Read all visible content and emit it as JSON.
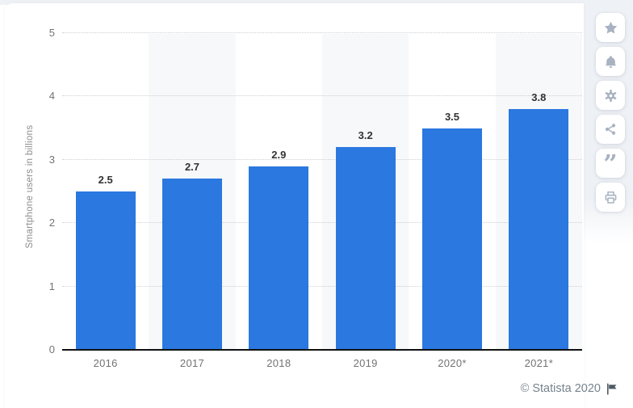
{
  "chart_data": {
    "type": "bar",
    "categories": [
      "2016",
      "2017",
      "2018",
      "2019",
      "2020*",
      "2021*"
    ],
    "values": [
      2.5,
      2.7,
      2.9,
      3.2,
      3.5,
      3.8
    ],
    "value_labels": [
      "2.5",
      "2.7",
      "2.9",
      "3.2",
      "3.5",
      "3.8"
    ],
    "ylabel": "Smartphone users in billions",
    "ylim": [
      0,
      5
    ],
    "yticks": [
      0,
      1,
      2,
      3,
      4,
      5
    ],
    "grid": "horizontal-dotted",
    "legend": "none",
    "alternating_bands": true
  },
  "sidebar": {
    "buttons": [
      {
        "name": "favorite",
        "icon": "star-icon"
      },
      {
        "name": "notifications",
        "icon": "bell-icon"
      },
      {
        "name": "settings",
        "icon": "gear-icon"
      },
      {
        "name": "share",
        "icon": "share-icon"
      },
      {
        "name": "cite",
        "icon": "quote-icon",
        "glyph": "”"
      },
      {
        "name": "print",
        "icon": "print-icon"
      }
    ]
  },
  "footer": {
    "copyright": "© Statista 2020",
    "flag": "flag-icon"
  },
  "colors": {
    "bar": "#2a78e0",
    "band": "#f7f8f9",
    "grid": "#cfcfcf",
    "axis": "#111111",
    "tick_label": "#737373",
    "value_label": "#333333",
    "ylabel": "#8c8c8c",
    "footer": "#76838e",
    "flag": "#4e5a64",
    "icon": "#a8b2c1",
    "page_bg": "#ffffff",
    "panel_bg": "#eef1f5",
    "card_bg": "#ffffff"
  }
}
